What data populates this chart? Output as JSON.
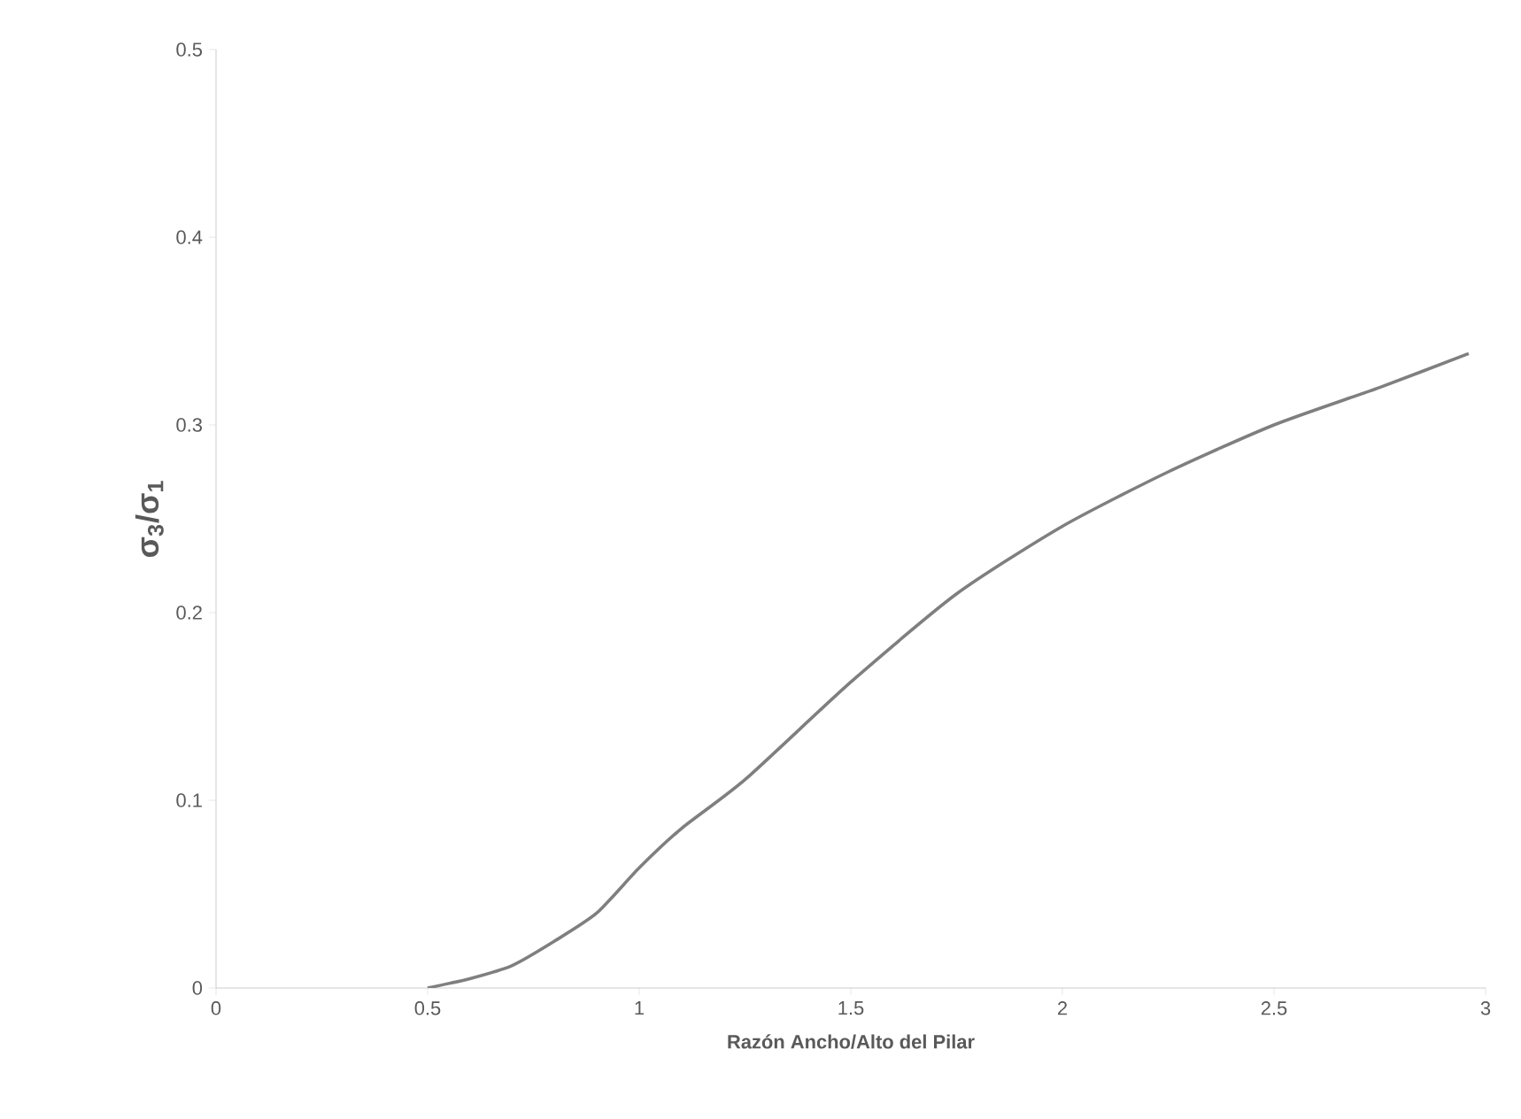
{
  "chart_data": {
    "type": "line",
    "xlabel": "Razón Ancho/Alto del Pilar",
    "ylabel": "σ$_{3}$/σ$_{1}$",
    "x": [
      0.5,
      0.6,
      0.7,
      0.8,
      0.9,
      1.0,
      1.1,
      1.25,
      1.5,
      1.75,
      2.0,
      2.25,
      2.5,
      2.75,
      2.96
    ],
    "series": [
      {
        "color": "#7f7f7f",
        "values": [
          0,
          0.005,
          0.012,
          0.025,
          0.04,
          0.064,
          0.085,
          0.111,
          0.163,
          0.21,
          0.246,
          0.275,
          0.3,
          0.32,
          0.338
        ]
      }
    ],
    "xlim": [
      0,
      3
    ],
    "ylim": [
      0,
      0.5
    ],
    "xticks": [
      0,
      0.5,
      1,
      1.5,
      2,
      2.5,
      3
    ],
    "yticks": [
      0,
      0.1,
      0.2,
      0.3,
      0.4,
      0.5
    ],
    "marker": "none",
    "line_style": "solid"
  }
}
